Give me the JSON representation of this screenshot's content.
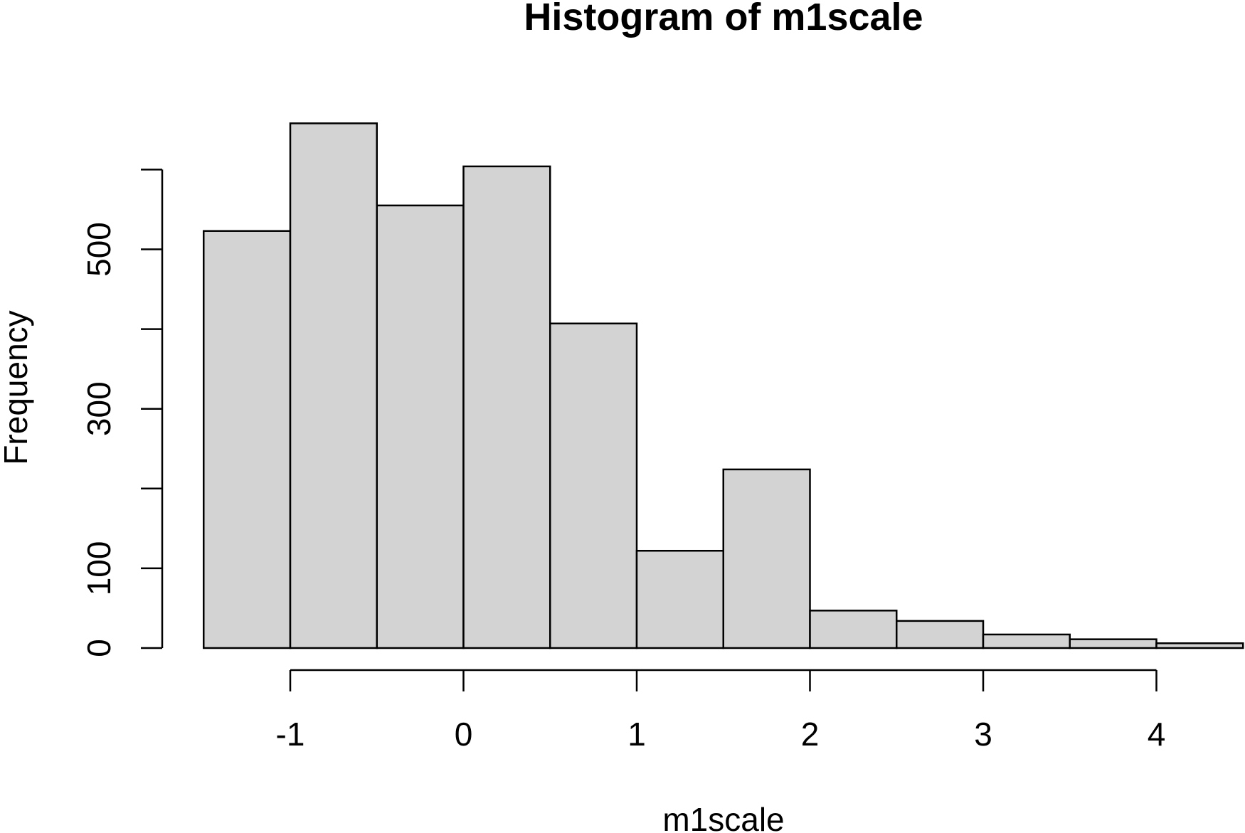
{
  "chart_data": {
    "type": "bar",
    "histogram": true,
    "title": "Histogram of m1scale",
    "xlabel": "m1scale",
    "ylabel": "Frequency",
    "bins": [
      {
        "x0": -1.5,
        "x1": -1.0,
        "count": 523
      },
      {
        "x0": -1.0,
        "x1": -0.5,
        "count": 658
      },
      {
        "x0": -0.5,
        "x1": 0.0,
        "count": 555
      },
      {
        "x0": 0.0,
        "x1": 0.5,
        "count": 604
      },
      {
        "x0": 0.5,
        "x1": 1.0,
        "count": 407
      },
      {
        "x0": 1.0,
        "x1": 1.5,
        "count": 122
      },
      {
        "x0": 1.5,
        "x1": 2.0,
        "count": 224
      },
      {
        "x0": 2.0,
        "x1": 2.5,
        "count": 47
      },
      {
        "x0": 2.5,
        "x1": 3.0,
        "count": 34
      },
      {
        "x0": 3.0,
        "x1": 3.5,
        "count": 17
      },
      {
        "x0": 3.5,
        "x1": 4.0,
        "count": 11
      },
      {
        "x0": 4.0,
        "x1": 4.5,
        "count": 6
      }
    ],
    "x_ticks": [
      -1,
      0,
      1,
      2,
      3,
      4
    ],
    "x_tick_labels": [
      "-1",
      "0",
      "1",
      "2",
      "3",
      "4"
    ],
    "y_ticks": [
      0,
      100,
      200,
      300,
      400,
      500,
      600
    ],
    "y_tick_labels": [
      "0",
      "100",
      "",
      "300",
      "",
      "500",
      ""
    ],
    "bar_color": "#d3d3d3",
    "grid": false
  }
}
